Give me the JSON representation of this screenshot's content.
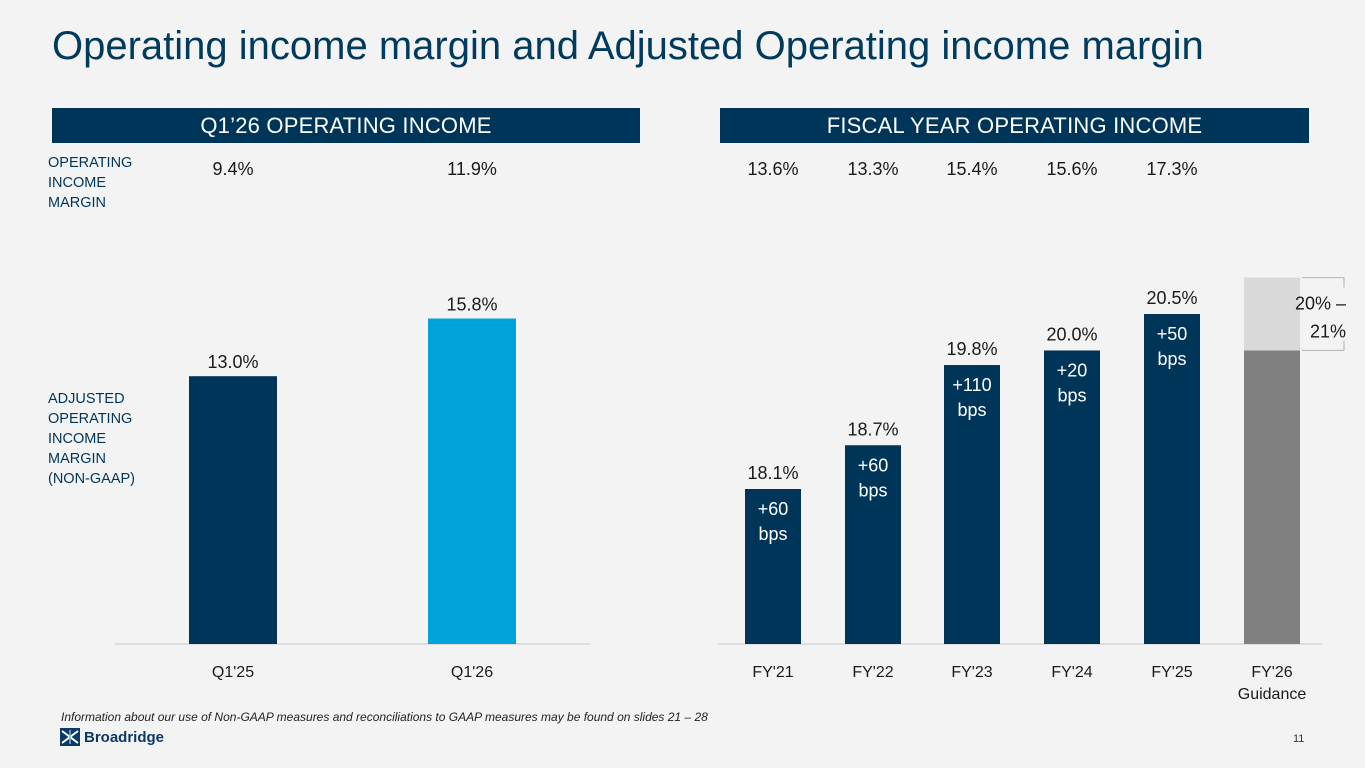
{
  "title": "Operating income margin and Adjusted Operating income margin",
  "left_header": "Q1’26 OPERATING INCOME",
  "right_header": "FISCAL YEAR OPERATING INCOME",
  "row_label_operating": "OPERATING INCOME MARGIN",
  "row_label_adjusted": "ADJUSTED OPERATING INCOME MARGIN (NON-GAAP)",
  "footnote": "Information about our use of Non-GAAP measures and reconciliations to GAAP measures may be found on slides 21 – 28",
  "logo_text": "Broadridge",
  "page_number": "11",
  "colors": {
    "navy": "#00355a",
    "cyan": "#00a3d9",
    "gray_dark": "#808080",
    "gray_light": "#d9d9d9",
    "title": "#003a5d"
  },
  "chart_data": [
    {
      "type": "bar",
      "categories": [
        "Q1'25",
        "Q1'26"
      ],
      "values": [
        13.0,
        15.8
      ],
      "value_labels": [
        "13.0%",
        "15.8%"
      ],
      "operating_margin_labels": [
        "9.4%",
        "11.9%"
      ],
      "bar_colors": [
        "#00355a",
        "#00a3d9"
      ],
      "ylim": [
        0,
        21.0
      ]
    },
    {
      "type": "bar",
      "categories": [
        "FY'21",
        "FY'22",
        "FY'23",
        "FY'24",
        "FY'25",
        "FY'26"
      ],
      "category_sublabels": [
        "",
        "",
        "",
        "",
        "",
        "Guidance"
      ],
      "values": [
        18.1,
        18.7,
        19.8,
        20.0,
        20.5,
        null
      ],
      "value_labels": [
        "18.1%",
        "18.7%",
        "19.8%",
        "20.0%",
        "20.5%",
        ""
      ],
      "change_labels": [
        [
          "+60",
          "bps"
        ],
        [
          "+60",
          "bps"
        ],
        [
          "+110",
          "bps"
        ],
        [
          "+20",
          "bps"
        ],
        [
          "+50",
          "bps"
        ],
        []
      ],
      "operating_margin_labels": [
        "13.6%",
        "13.3%",
        "15.4%",
        "15.6%",
        "17.3%",
        ""
      ],
      "guidance_range": {
        "low": 20.0,
        "high": 21.0,
        "label_line1": "20% –",
        "label_line2": "21%"
      },
      "ylim": [
        0,
        21.0
      ]
    }
  ]
}
